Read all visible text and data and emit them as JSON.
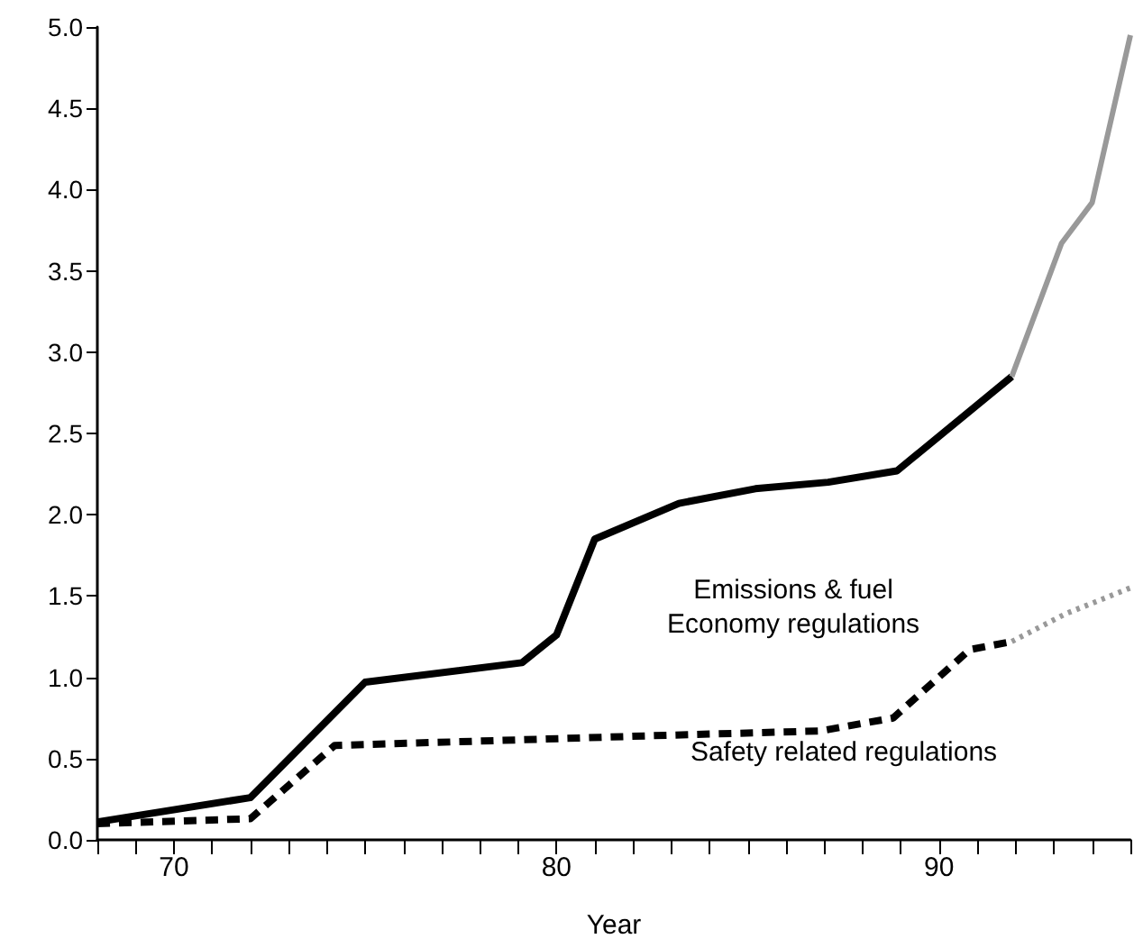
{
  "chart_data": {
    "type": "line",
    "xlabel": "Year",
    "xlim": [
      68,
      95
    ],
    "xticks": [
      {
        "value": 68,
        "label": null
      },
      {
        "value": 69,
        "label": null
      },
      70,
      {
        "value": 71,
        "label": null
      },
      {
        "value": 72,
        "label": null
      },
      {
        "value": 73,
        "label": null
      },
      {
        "value": 74,
        "label": null
      },
      {
        "value": 75,
        "label": null
      },
      {
        "value": 76,
        "label": null
      },
      {
        "value": 77,
        "label": null
      },
      {
        "value": 78,
        "label": null
      },
      {
        "value": 79,
        "label": null
      },
      80,
      {
        "value": 81,
        "label": null
      },
      {
        "value": 82,
        "label": null
      },
      {
        "value": 83,
        "label": null
      },
      {
        "value": 84,
        "label": null
      },
      {
        "value": 85,
        "label": null
      },
      {
        "value": 86,
        "label": null
      },
      {
        "value": 87,
        "label": null
      },
      {
        "value": 88,
        "label": null
      },
      {
        "value": 89,
        "label": null
      },
      90,
      {
        "value": 91,
        "label": null
      },
      {
        "value": 92,
        "label": null
      },
      {
        "value": 93,
        "label": null
      },
      {
        "value": 94,
        "label": null
      },
      {
        "value": 95,
        "label": null
      }
    ],
    "ylim": [
      0,
      5
    ],
    "yticks": [
      {
        "value": 0,
        "label": "0.0"
      },
      {
        "value": 0.5,
        "label": "0.5"
      },
      {
        "value": 1,
        "label": "1.0"
      },
      {
        "value": 1.5,
        "label": "1.5"
      },
      {
        "value": 2,
        "label": "2.0"
      },
      {
        "value": 2.5,
        "label": "2.5"
      },
      {
        "value": 3,
        "label": "3.0"
      },
      {
        "value": 3.5,
        "label": "3.5"
      },
      {
        "value": 4,
        "label": "4.0"
      },
      {
        "value": 4.5,
        "label": "4.5"
      },
      {
        "value": 5,
        "label": "5.0"
      }
    ],
    "grid": false,
    "marker": "none",
    "series": [
      {
        "color": "#000000",
        "line_style": "solid",
        "x": [
          68,
          72,
          75,
          79.1,
          80,
          81,
          83.2,
          85.2,
          87.1,
          88.9,
          91.9
        ],
        "values": [
          0.11,
          0.26,
          0.97,
          1.09,
          1.26,
          1.85,
          2.07,
          2.16,
          2.2,
          2.27,
          2.85
        ]
      },
      {
        "color": "#999999",
        "line_style": "solid",
        "x": [
          91.9,
          93.2,
          94,
          95
        ],
        "values": [
          2.85,
          3.67,
          3.92,
          4.95
        ]
      },
      {
        "color": "#000000",
        "line_style": "dashed",
        "x": [
          68,
          72,
          74.2,
          82.4,
          86.9,
          88.8,
          90.8,
          91.9
        ],
        "values": [
          0.1,
          0.13,
          0.58,
          0.64,
          0.67,
          0.75,
          1.17,
          1.22
        ]
      },
      {
        "color": "#999999",
        "line_style": "dotted",
        "x": [
          91.9,
          93.3,
          95
        ],
        "values": [
          1.22,
          1.39,
          1.55
        ]
      }
    ],
    "annotations": [
      "Emissions & fuel\nEconomy regulations",
      "Safety related regulations"
    ]
  }
}
